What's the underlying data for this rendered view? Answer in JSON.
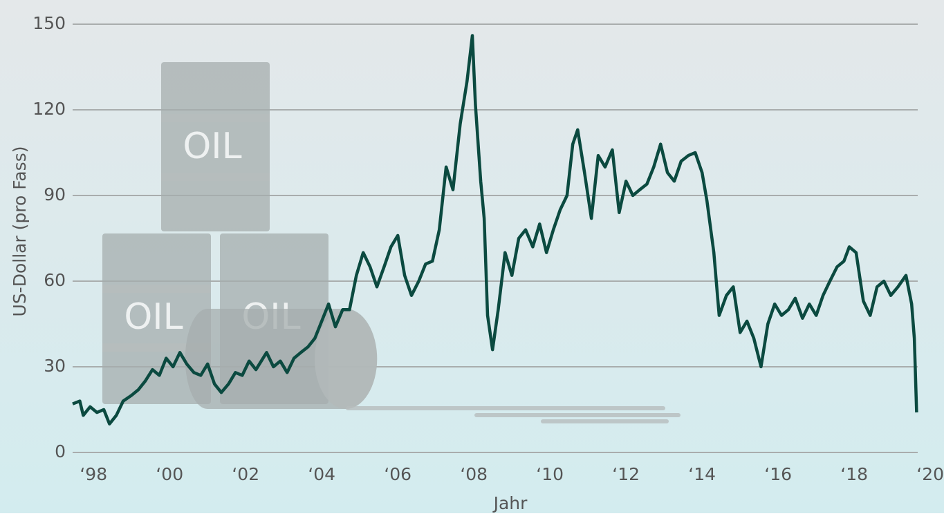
{
  "chart_data": {
    "type": "line",
    "y_label": "US-Dollar (pro Fass)",
    "x_label": "Jahr",
    "illustration_text": "OIL",
    "color": "#0b4a40",
    "grid": true,
    "xlim": [
      1997.45,
      2019.67
    ],
    "ylim": [
      0,
      150
    ],
    "yticks": [
      0,
      30,
      60,
      90,
      120,
      150
    ],
    "xticks": [
      {
        "value": 1998,
        "label": "‘98"
      },
      {
        "value": 2000,
        "label": "‘00"
      },
      {
        "value": 2002,
        "label": "‘02"
      },
      {
        "value": 2004,
        "label": "‘04"
      },
      {
        "value": 2006,
        "label": "‘06"
      },
      {
        "value": 2008,
        "label": "‘08"
      },
      {
        "value": 2010,
        "label": "‘10"
      },
      {
        "value": 2012,
        "label": "‘12"
      },
      {
        "value": 2014,
        "label": "‘14"
      },
      {
        "value": 2016,
        "label": "‘16"
      },
      {
        "value": 2018,
        "label": "‘18"
      },
      {
        "value": 2020,
        "label": "‘20"
      }
    ],
    "x": [
      1997.45,
      1997.64,
      1997.73,
      1997.91,
      1998.09,
      1998.27,
      1998.42,
      1998.6,
      1998.78,
      1999.0,
      1999.18,
      1999.36,
      1999.55,
      1999.73,
      1999.91,
      2000.09,
      2000.27,
      2000.45,
      2000.64,
      2000.82,
      2001.0,
      2001.18,
      2001.36,
      2001.55,
      2001.73,
      2001.91,
      2002.09,
      2002.27,
      2002.55,
      2002.73,
      2002.91,
      2003.09,
      2003.27,
      2003.45,
      2003.64,
      2003.82,
      2004.0,
      2004.18,
      2004.36,
      2004.55,
      2004.73,
      2004.91,
      2005.09,
      2005.27,
      2005.45,
      2005.64,
      2005.82,
      2006.0,
      2006.18,
      2006.36,
      2006.55,
      2006.73,
      2006.91,
      2007.09,
      2007.27,
      2007.45,
      2007.64,
      2007.82,
      2007.96,
      2008.04,
      2008.18,
      2008.27,
      2008.36,
      2008.49,
      2008.64,
      2008.82,
      2009.0,
      2009.18,
      2009.36,
      2009.55,
      2009.73,
      2009.91,
      2010.09,
      2010.27,
      2010.45,
      2010.6,
      2010.73,
      2010.91,
      2011.09,
      2011.27,
      2011.45,
      2011.64,
      2011.82,
      2012.0,
      2012.18,
      2012.36,
      2012.55,
      2012.73,
      2012.91,
      2013.09,
      2013.27,
      2013.45,
      2013.64,
      2013.82,
      2014.0,
      2014.13,
      2014.31,
      2014.45,
      2014.64,
      2014.82,
      2015.0,
      2015.18,
      2015.36,
      2015.55,
      2015.73,
      2015.91,
      2016.09,
      2016.27,
      2016.45,
      2016.64,
      2016.82,
      2017.0,
      2017.18,
      2017.36,
      2017.55,
      2017.73,
      2017.87,
      2018.05,
      2018.24,
      2018.42,
      2018.6,
      2018.78,
      2018.96,
      2019.15,
      2019.36,
      2019.51,
      2019.58,
      2019.64
    ],
    "values": [
      17,
      18,
      13,
      16,
      14,
      15,
      10,
      13,
      18,
      20,
      22,
      25,
      29,
      27,
      33,
      30,
      35,
      31,
      28,
      27,
      31,
      24,
      21,
      24,
      28,
      27,
      32,
      29,
      35,
      30,
      32,
      28,
      33,
      35,
      37,
      40,
      46,
      52,
      44,
      50,
      50,
      62,
      70,
      65,
      58,
      65,
      72,
      76,
      62,
      55,
      60,
      66,
      67,
      78,
      100,
      92,
      115,
      130,
      146,
      122,
      95,
      82,
      48,
      36,
      50,
      70,
      62,
      75,
      78,
      72,
      80,
      70,
      78,
      85,
      90,
      108,
      113,
      98,
      82,
      104,
      100,
      106,
      84,
      95,
      90,
      92,
      94,
      100,
      108,
      98,
      95,
      102,
      104,
      105,
      98,
      88,
      70,
      48,
      55,
      58,
      42,
      46,
      40,
      30,
      45,
      52,
      48,
      50,
      54,
      47,
      52,
      48,
      55,
      60,
      65,
      67,
      72,
      70,
      53,
      48,
      58,
      60,
      55,
      58,
      62,
      52,
      40,
      14
    ]
  }
}
